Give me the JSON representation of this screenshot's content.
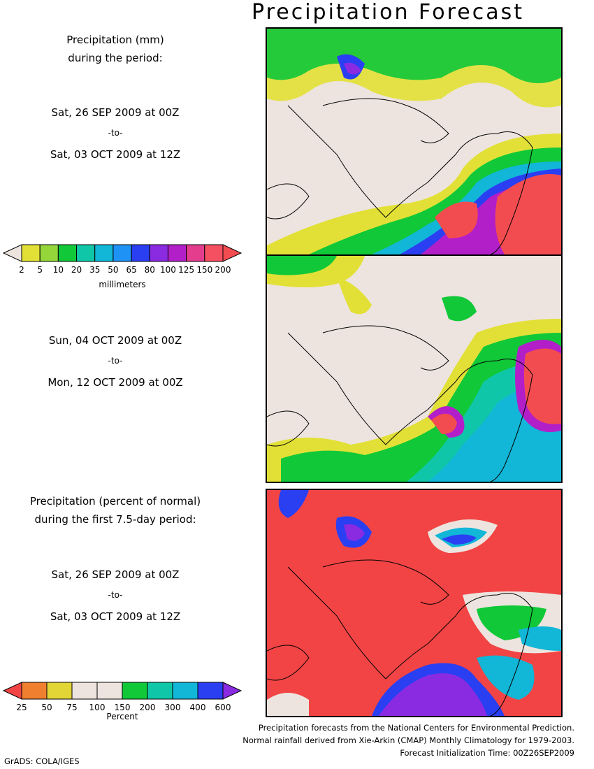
{
  "title": "Precipitation Forecast",
  "panel1": {
    "heading_line1": "Precipitation (mm)",
    "heading_line2": "during the period:",
    "start": "Sat, 26 SEP 2009 at 00Z",
    "to": "-to-",
    "end": "Sat, 03 OCT 2009 at 12Z"
  },
  "mm_colorbar": {
    "ticks": [
      "2",
      "5",
      "10",
      "20",
      "35",
      "50",
      "65",
      "80",
      "100",
      "125",
      "150",
      "200"
    ],
    "unit": "millimeters",
    "colors": [
      "#ede4df",
      "#e2e036",
      "#95d73a",
      "#10c838",
      "#0fc7a8",
      "#12b6d7",
      "#1f92f5",
      "#2a3ff2",
      "#8a2be2",
      "#b21fc8",
      "#e43d8e",
      "#f45061",
      "#f34c50"
    ]
  },
  "panel2": {
    "start": "Sun, 04 OCT 2009 at 00Z",
    "to": "-to-",
    "end": "Mon, 12 OCT 2009 at 00Z"
  },
  "panel3": {
    "heading_line1": "Precipitation (percent of normal)",
    "heading_line2": "during the first 7.5-day period:",
    "start": "Sat, 26 SEP 2009 at 00Z",
    "to": "-to-",
    "end": "Sat, 03 OCT 2009 at 12Z"
  },
  "pct_colorbar": {
    "ticks": [
      "25",
      "50",
      "75",
      "100",
      "150",
      "200",
      "300",
      "400",
      "600"
    ],
    "unit": "Percent",
    "colors": [
      "#f24444",
      "#f08030",
      "#e2d536",
      "#ede4df",
      "#ede4df",
      "#10c838",
      "#0fc7a8",
      "#12b6d7",
      "#2a3ff2",
      "#8a2be2"
    ]
  },
  "footer": {
    "line1": "Precipitation forecasts from the National Centers for Environmental Prediction.",
    "line2": "Normal rainfall derived from Xie-Arkin (CMAP) Monthly Climatology for 1979-2003.",
    "line3": "Forecast Initialization Time: 00Z26SEP2009"
  },
  "credit": "GrADS: COLA/IGES"
}
